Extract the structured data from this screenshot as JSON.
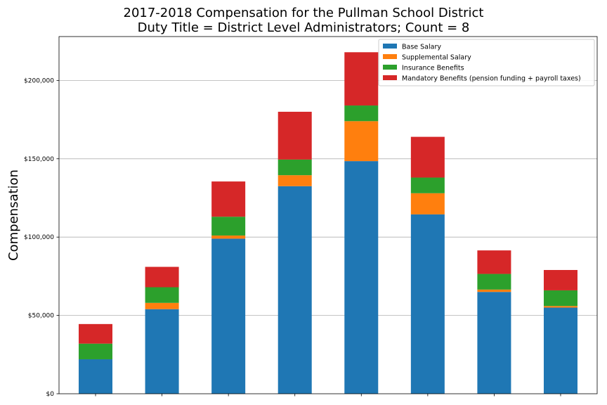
{
  "chart_data": {
    "type": "bar",
    "stacked": true,
    "title": "2017-2018 Compensation for the Pullman School District",
    "subtitle": "Duty Title = District Level Administrators; Count = 8",
    "xlabel": "",
    "ylabel": "Compensation",
    "ylim": [
      0,
      228000
    ],
    "yticks": [
      0,
      50000,
      100000,
      150000,
      200000
    ],
    "ytick_labels": [
      "$0",
      "$50,000",
      "$100,000",
      "$150,000",
      "$200,000"
    ],
    "grid": "horizontal",
    "legend_position": "top-right",
    "categories": [
      "",
      "",
      "",
      "",
      "",
      "",
      "",
      ""
    ],
    "series": [
      {
        "name": "Base Salary",
        "color": "#1f77b4",
        "values": [
          22000,
          54000,
          99000,
          132500,
          148500,
          114500,
          65000,
          55000
        ]
      },
      {
        "name": "Supplemental Salary",
        "color": "#ff7f0e",
        "values": [
          0,
          4000,
          2000,
          7000,
          25500,
          13500,
          1500,
          1000
        ]
      },
      {
        "name": "Insurance Benefits",
        "color": "#2ca02c",
        "values": [
          10000,
          10000,
          12000,
          10000,
          10000,
          10000,
          10000,
          10000
        ]
      },
      {
        "name": "Mandatory Benefits (pension funding + payroll taxes)",
        "color": "#d62728",
        "values": [
          12500,
          13000,
          22500,
          30500,
          34000,
          26000,
          15000,
          13000
        ]
      }
    ]
  }
}
